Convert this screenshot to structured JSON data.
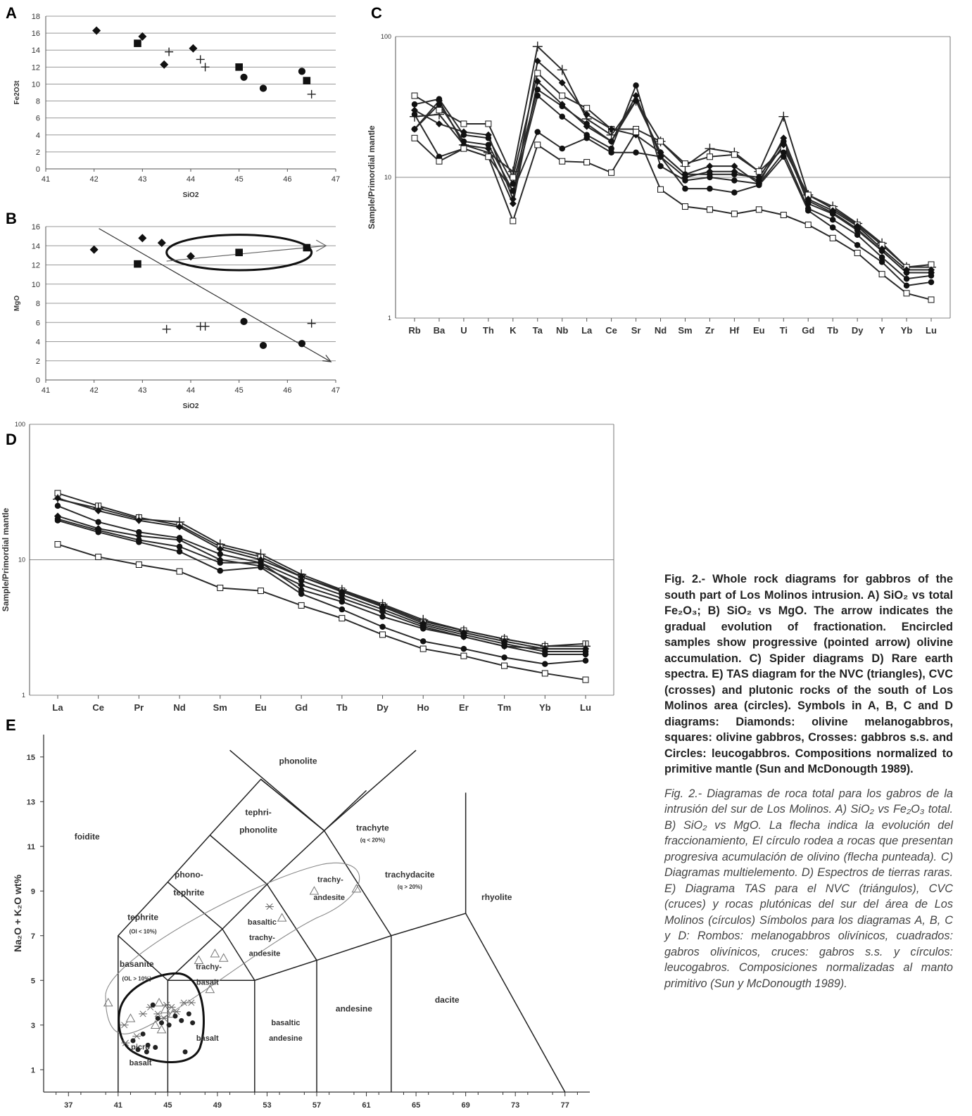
{
  "figure": {
    "panel_labels": [
      "A",
      "B",
      "C",
      "D",
      "E"
    ]
  },
  "caption": {
    "english": "Fig. 2.- Whole rock diagrams for gabbros of the south part of Los Molinos intrusion. A) SiO₂ vs total Fe₂O₃; B) SiO₂ vs MgO. The arrow indicates the gradual evolution of fractionation. Encircled samples show progressive (pointed arrow) olivine accumulation. C) Spider diagrams D) Rare earth spectra. E) TAS diagram for the NVC (triangles), CVC (crosses) and plutonic rocks of the south of Los Molinos area (circles). Symbols in A, B, C and D diagrams: Diamonds: olivine melanogabbros, squares: olivine gabbros, Crosses: gabbros s.s. and Circles: leucogabbros. Compositions normalized to primitive mantle (Sun and McDonougth 1989).",
    "spanish": "Fig. 2.- Diagramas de roca total para los gabros de la intrusión del sur de Los Molinos. A) SiO₂ vs Fe₂O₃ total. B) SiO₂ vs MgO. La flecha indica la evolución del fraccionamiento, El círculo rodea a rocas que presentan progresiva acumulación de olivino (flecha punteada). C) Diagramas multielemento. D) Espectros de tierras raras. E) Diagrama TAS para el NVC (triángulos), CVC (cruces) y rocas plutónicas del sur del área de Los Molinos (círculos) Símbolos para los diagramas A, B, C y D: Rombos: melanogabbros olivínicos, cuadrados: gabros olivínicos, cruces: gabros s.s. y círculos: leucogabros. Composiciones normalizadas al manto primitivo (Sun y McDonougth 1989)."
  },
  "chart_data": [
    {
      "id": "A",
      "type": "scatter",
      "xlabel": "SiO2",
      "ylabel": "Fe2O3t",
      "xlim": [
        41,
        47
      ],
      "ylim": [
        0,
        18
      ],
      "xticks": [
        41,
        42,
        43,
        44,
        45,
        46,
        47
      ],
      "yticks": [
        0,
        2,
        4,
        6,
        8,
        10,
        12,
        14,
        16,
        18
      ],
      "grid": "horizontal",
      "series": [
        {
          "marker": "diamond",
          "x": [
            42.05,
            43.0,
            43.45,
            44.05
          ],
          "y": [
            16.3,
            15.6,
            12.3,
            14.2
          ]
        },
        {
          "marker": "square",
          "x": [
            42.9,
            45.0,
            46.4
          ],
          "y": [
            14.8,
            12.0,
            10.4
          ]
        },
        {
          "marker": "cross",
          "x": [
            43.55,
            44.2,
            44.3,
            46.5
          ],
          "y": [
            13.8,
            12.9,
            12.0,
            8.8
          ]
        },
        {
          "marker": "circle",
          "x": [
            45.1,
            45.5,
            46.3
          ],
          "y": [
            10.8,
            9.5,
            11.5
          ]
        }
      ]
    },
    {
      "id": "B",
      "type": "scatter",
      "xlabel": "SiO2",
      "ylabel": "MgO",
      "xlim": [
        41,
        47
      ],
      "ylim": [
        0,
        16
      ],
      "xticks": [
        41,
        42,
        43,
        44,
        45,
        46,
        47
      ],
      "yticks": [
        0,
        2,
        4,
        6,
        8,
        10,
        12,
        14,
        16
      ],
      "grid": "horizontal",
      "series": [
        {
          "marker": "diamond",
          "x": [
            42.0,
            43.0,
            43.4,
            44.0
          ],
          "y": [
            13.6,
            14.8,
            14.3,
            12.9
          ]
        },
        {
          "marker": "square",
          "x": [
            42.9,
            45.0,
            46.4
          ],
          "y": [
            12.1,
            13.3,
            13.8
          ]
        },
        {
          "marker": "cross",
          "x": [
            43.5,
            44.2,
            44.3,
            46.5
          ],
          "y": [
            5.3,
            5.6,
            5.6,
            5.9
          ]
        },
        {
          "marker": "circle",
          "x": [
            45.1,
            45.5,
            46.3
          ],
          "y": [
            6.1,
            3.6,
            3.8
          ]
        }
      ],
      "annotations": {
        "arrow": {
          "from": [
            42.1,
            15.8
          ],
          "to": [
            46.9,
            1.9
          ]
        },
        "pointed_arrow": {
          "from": [
            43.5,
            12.4
          ],
          "to": [
            46.8,
            14.0
          ]
        },
        "ellipse": {
          "center": [
            45.0,
            13.3
          ],
          "radius": [
            1.5,
            1.85
          ]
        }
      }
    },
    {
      "id": "C",
      "type": "line",
      "scale": "log",
      "ylabel": "Sample/Primordial mantle",
      "ylim": [
        1,
        100
      ],
      "yticks": [
        1,
        10,
        100
      ],
      "categories": [
        "Rb",
        "Ba",
        "U",
        "Th",
        "K",
        "Ta",
        "Nb",
        "La",
        "Ce",
        "Sr",
        "Nd",
        "Sm",
        "Zr",
        "Hf",
        "Eu",
        "Ti",
        "Gd",
        "Tb",
        "Dy",
        "Y",
        "Yb",
        "Lu"
      ],
      "series": [
        {
          "marker": "cross",
          "values": [
            27,
            28,
            17,
            15,
            11,
            85,
            58,
            26,
            20,
            35,
            18,
            12,
            16,
            15,
            11,
            27,
            7.5,
            6.2,
            4.7,
            3.4,
            2.3,
            2.3
          ]
        },
        {
          "marker": "square",
          "values": [
            38,
            30,
            24,
            24,
            10,
            55,
            38,
            31,
            22,
            22,
            18,
            12.5,
            14,
            14.5,
            11,
            16,
            7.5,
            6,
            4.6,
            3.3,
            2.3,
            2.4
          ]
        },
        {
          "marker": "diamond",
          "values": [
            30,
            24,
            21,
            20,
            7,
            67,
            47,
            28,
            22,
            20,
            15,
            10.5,
            12,
            12,
            9,
            19,
            7,
            5.8,
            4.5,
            3.1,
            2.2,
            2.2
          ]
        },
        {
          "marker": "circle",
          "values": [
            33,
            36,
            20,
            19,
            9,
            42,
            32,
            24,
            18,
            35,
            15,
            10.5,
            10.5,
            10.5,
            10,
            18,
            6.5,
            5.5,
            4.2,
            3,
            2.1,
            2.1
          ]
        },
        {
          "marker": "circle",
          "values": [
            22,
            33,
            18,
            17,
            8,
            38,
            27,
            20,
            16,
            45,
            12,
            9.5,
            10,
            9.5,
            9,
            15,
            6,
            5,
            3.9,
            2.7,
            1.9,
            2.0
          ]
        },
        {
          "marker": "diamond",
          "values": [
            22,
            35,
            17,
            16,
            6.5,
            48,
            33,
            23,
            18,
            38,
            14,
            10,
            11,
            11,
            9.5,
            17,
            6.8,
            5.6,
            4.3,
            3.0,
            2.1,
            2.1
          ]
        },
        {
          "marker": "circle",
          "values": [
            28,
            14,
            16,
            14,
            8,
            21,
            16,
            19,
            15,
            15,
            14,
            8.3,
            8.3,
            7.8,
            8.8,
            14,
            5.8,
            4.4,
            3.3,
            2.5,
            1.7,
            1.8
          ]
        },
        {
          "marker": "square",
          "values": [
            19,
            13,
            16,
            14,
            4.9,
            17,
            13,
            12.8,
            10.8,
            21,
            8.2,
            6.2,
            5.9,
            5.5,
            5.9,
            5.4,
            4.6,
            3.7,
            2.9,
            2.05,
            1.5,
            1.35
          ]
        }
      ]
    },
    {
      "id": "D",
      "type": "line",
      "scale": "log",
      "ylabel": "Sample/Primordial mantle",
      "ylim": [
        1,
        100
      ],
      "yticks": [
        1,
        10,
        100
      ],
      "categories": [
        "La",
        "Ce",
        "Pr",
        "Nd",
        "Sm",
        "Eu",
        "Gd",
        "Tb",
        "Dy",
        "Ho",
        "Er",
        "Tm",
        "Yb",
        "Lu"
      ],
      "series": [
        {
          "marker": "square",
          "values": [
            31,
            25,
            20.5,
            18,
            12.5,
            10.5,
            7.5,
            5.9,
            4.6,
            3.5,
            3,
            2.6,
            2.3,
            2.4
          ]
        },
        {
          "marker": "cross",
          "values": [
            28,
            24,
            20,
            19,
            13,
            11,
            7.8,
            6,
            4.7,
            3.6,
            3,
            2.6,
            2.3,
            2.3
          ]
        },
        {
          "marker": "diamond",
          "values": [
            28.5,
            23,
            19.5,
            17.5,
            12,
            10,
            7.5,
            5.8,
            4.5,
            3.4,
            2.9,
            2.5,
            2.2,
            2.2
          ]
        },
        {
          "marker": "circle",
          "values": [
            25,
            19,
            16,
            14.5,
            11,
            9.5,
            7,
            5.5,
            4.3,
            3.3,
            2.8,
            2.4,
            2.1,
            2.1
          ]
        },
        {
          "marker": "diamond",
          "values": [
            21,
            17,
            15,
            14,
            10,
            9,
            6.5,
            5.2,
            4.1,
            3.2,
            2.7,
            2.3,
            2.2,
            2.2
          ]
        },
        {
          "marker": "circle",
          "values": [
            20,
            16.5,
            14,
            12.5,
            9.5,
            9.5,
            6,
            4.9,
            3.8,
            3.1,
            2.7,
            2.3,
            2.0,
            2.0
          ]
        },
        {
          "marker": "circle",
          "values": [
            19.5,
            16,
            13.5,
            11.5,
            8.3,
            8.8,
            5.6,
            4.3,
            3.2,
            2.5,
            2.2,
            1.9,
            1.7,
            1.8
          ]
        },
        {
          "marker": "square",
          "values": [
            13,
            10.5,
            9.2,
            8.2,
            6.2,
            5.9,
            4.6,
            3.7,
            2.8,
            2.2,
            1.95,
            1.65,
            1.45,
            1.3
          ]
        }
      ]
    },
    {
      "id": "E",
      "type": "scatter",
      "xlabel": "SiO₂ wt%",
      "ylabel": "Na₂O + K₂O wt%",
      "xlim": [
        35,
        79
      ],
      "ylim": [
        0,
        16
      ],
      "xticks": [
        37,
        41,
        45,
        49,
        53,
        57,
        61,
        65,
        69,
        73,
        77
      ],
      "yticks": [
        1,
        3,
        5,
        7,
        9,
        11,
        13,
        15
      ],
      "field_labels": [
        "foidite",
        "phonolite",
        "tephri-",
        "phonolite",
        "phono-",
        "tephrite",
        "tephrite",
        "(Ol < 10%)",
        "basanite",
        "(OL > 10%)",
        "trachy-",
        "basalt",
        "basaltic",
        "trachy-",
        "andesite",
        "trachy-",
        "andesite",
        "trachyte",
        "(q < 20%)",
        "trachydacite",
        "(q > 20%)",
        "rhyolite",
        "basalt",
        "picro",
        "basalt",
        "basaltic",
        "andesine",
        "andesine",
        "dacite"
      ],
      "series": [
        {
          "marker": "triangle",
          "x": [
            40.2,
            42.0,
            44.3,
            44.8,
            45.4,
            44.0,
            44.5,
            47.5,
            48.8,
            49.5,
            48.4,
            54.2,
            56.8,
            60.2
          ],
          "y": [
            4.0,
            3.3,
            4.0,
            3.7,
            3.5,
            3.0,
            2.8,
            5.9,
            6.2,
            6.0,
            4.6,
            7.8,
            9.0,
            9.1
          ]
        },
        {
          "marker": "asterisk",
          "x": [
            41.5,
            43.0,
            43.6,
            44.2,
            44.9,
            45.3,
            45.7,
            46.3,
            46.9,
            53.2,
            41.6,
            42.5,
            44.7
          ],
          "y": [
            3.0,
            3.5,
            3.8,
            3.5,
            3.9,
            3.8,
            3.6,
            4.0,
            4.0,
            8.3,
            2.2,
            2.5,
            3.3
          ]
        },
        {
          "marker": "dot",
          "x": [
            42.2,
            43.0,
            43.4,
            43.8,
            44.2,
            44.5,
            45.1,
            45.6,
            46.1,
            46.7,
            47.0,
            42.6,
            43.3,
            44.0,
            46.4
          ],
          "y": [
            2.3,
            2.6,
            2.1,
            3.9,
            3.3,
            3.1,
            3.0,
            3.4,
            3.2,
            3.5,
            3.1,
            1.9,
            1.8,
            2.0,
            1.8
          ]
        }
      ]
    }
  ]
}
